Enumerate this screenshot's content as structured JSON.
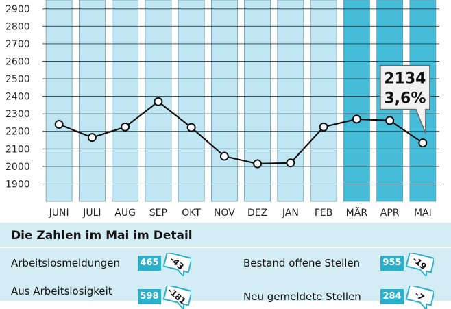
{
  "chart_data": {
    "type": "line",
    "categories": [
      "JUNI",
      "JULI",
      "AUG",
      "SEP",
      "OKT",
      "NOV",
      "DEZ",
      "JAN",
      "FEB",
      "MÄR",
      "APR",
      "MAI"
    ],
    "values": [
      2240,
      2165,
      2225,
      2370,
      2222,
      2058,
      2015,
      2020,
      2225,
      2270,
      2262,
      2134
    ],
    "highlighted_categories": [
      "MÄR",
      "APR",
      "MAI"
    ],
    "ylim": [
      1800,
      2950
    ],
    "yticks": [
      1900,
      2000,
      2100,
      2200,
      2300,
      2400,
      2500,
      2600,
      2700,
      2800,
      2900
    ],
    "grid": true,
    "colors": {
      "bar_light": "#bfe6f2",
      "bar_highlight": "#45bcd8",
      "line": "#111111",
      "marker_fill": "#ffffff"
    },
    "callout": {
      "category": "MAI",
      "value": "2134",
      "rate": "3,6%"
    }
  },
  "detail": {
    "title": "Die Zahlen im Mai im Detail",
    "rows": [
      {
        "label": "Arbeitslosmeldungen",
        "value": "465",
        "change": "-43"
      },
      {
        "label": "Aus Arbeitslosigkeit",
        "value": "598",
        "change": "-181"
      },
      {
        "label": "Bestand offene Stellen",
        "value": "955",
        "change": "-19"
      },
      {
        "label": "Neu gemeldete Stellen",
        "value": "284",
        "change": "-7"
      }
    ]
  }
}
